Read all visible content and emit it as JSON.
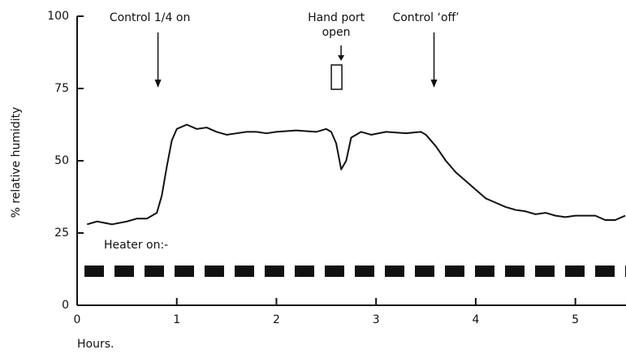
{
  "chart_data": {
    "type": "line",
    "ylabel": "% relative humidity",
    "xlabel": "Hours.",
    "x": [
      0.1,
      0.2,
      0.35,
      0.5,
      0.6,
      0.7,
      0.8,
      0.85,
      0.9,
      0.95,
      1.0,
      1.1,
      1.2,
      1.3,
      1.4,
      1.5,
      1.6,
      1.7,
      1.8,
      1.9,
      2.0,
      2.2,
      2.4,
      2.5,
      2.55,
      2.6,
      2.65,
      2.7,
      2.75,
      2.85,
      2.95,
      3.1,
      3.3,
      3.45,
      3.5,
      3.6,
      3.7,
      3.8,
      3.9,
      4.0,
      4.1,
      4.2,
      4.3,
      4.4,
      4.5,
      4.6,
      4.7,
      4.8,
      4.9,
      5.0,
      5.2,
      5.3,
      5.4,
      5.5
    ],
    "series": [
      {
        "color": "#111111",
        "values": [
          28,
          29,
          28,
          29,
          30,
          30,
          32,
          38,
          48,
          57,
          61,
          62.5,
          61,
          61.5,
          60,
          59,
          59.5,
          60,
          60,
          59.5,
          60,
          60.5,
          60,
          61,
          60,
          56,
          47,
          50,
          58,
          60,
          59,
          60,
          59.5,
          60,
          59,
          55,
          50,
          46,
          43,
          40,
          37,
          35.5,
          34,
          33,
          32.5,
          31.5,
          32,
          31,
          30.5,
          31,
          31,
          29.5,
          29.5,
          31
        ]
      }
    ],
    "annotations": [
      {
        "text": "Control 1/4 on",
        "x": 0.73
      },
      {
        "text": "Hand port open",
        "x": 2.6
      },
      {
        "text": "Control ‘off’",
        "x": 3.5
      }
    ],
    "heater_label": "Heater on:-",
    "xlim": [
      0,
      5.5
    ],
    "xticks": [
      0,
      1,
      2,
      3,
      4,
      5
    ],
    "ylim": [
      0,
      100
    ],
    "yticks": [
      0,
      25,
      50,
      75,
      100
    ]
  }
}
